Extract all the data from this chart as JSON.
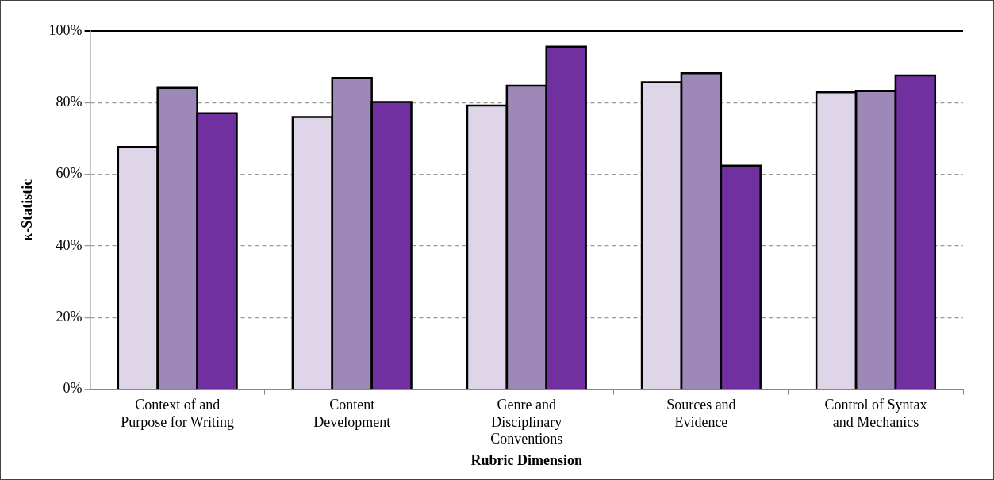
{
  "chart_data": {
    "type": "bar",
    "xlabel": "Rubric Dimension",
    "ylabel": "κ-Statistic",
    "categories": [
      "Context of and\nPurpose for Writing",
      "Content\nDevelopment",
      "Genre and\nDisciplinary\nConventions",
      "Sources and\nEvidence",
      "Control of Syntax\nand Mechanics"
    ],
    "series": [
      {
        "color": "#ded5e8",
        "values": [
          67.6,
          76.0,
          79.2,
          85.7,
          82.9
        ]
      },
      {
        "color": "#9e88b8",
        "values": [
          84.1,
          86.9,
          84.7,
          88.2,
          83.2
        ]
      },
      {
        "color": "#7030a0",
        "values": [
          77.0,
          80.2,
          95.6,
          62.4,
          87.6
        ]
      }
    ],
    "ylim": [
      0,
      100
    ],
    "yticks": [
      {
        "value": 0,
        "label": "0%"
      },
      {
        "value": 20,
        "label": "20%"
      },
      {
        "value": 40,
        "label": "40%"
      },
      {
        "value": 60,
        "label": "60%"
      },
      {
        "value": 80,
        "label": "80%"
      },
      {
        "value": 100,
        "label": "100%"
      }
    ],
    "grid": "y",
    "legend": false
  }
}
